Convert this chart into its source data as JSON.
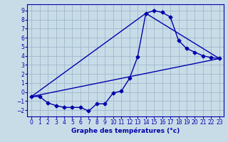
{
  "xlabel": "Graphe des températures (°c)",
  "background_color": "#c8dce8",
  "grid_color": "#a0b8cc",
  "line_color": "#0000aa",
  "xlim": [
    -0.5,
    23.5
  ],
  "ylim": [
    -2.7,
    9.7
  ],
  "xticks": [
    0,
    1,
    2,
    3,
    4,
    5,
    6,
    7,
    8,
    9,
    10,
    11,
    12,
    13,
    14,
    15,
    16,
    17,
    18,
    19,
    20,
    21,
    22,
    23
  ],
  "yticks": [
    -2,
    -1,
    0,
    1,
    2,
    3,
    4,
    5,
    6,
    7,
    8,
    9
  ],
  "series1_x": [
    0,
    1,
    2,
    3,
    4,
    5,
    6,
    7,
    8,
    9,
    10,
    11,
    12,
    13,
    14,
    15,
    16,
    17,
    18,
    19,
    20,
    21,
    22,
    23
  ],
  "series1_y": [
    -0.5,
    -0.5,
    -1.2,
    -1.5,
    -1.7,
    -1.7,
    -1.7,
    -2.1,
    -1.3,
    -1.3,
    -0.1,
    0.1,
    1.5,
    3.9,
    8.7,
    9.0,
    8.8,
    8.3,
    5.7,
    4.8,
    4.4,
    4.0,
    3.8,
    3.7
  ],
  "series2_x": [
    0,
    14,
    23
  ],
  "series2_y": [
    -0.5,
    8.7,
    3.7
  ],
  "series3_x": [
    0,
    23
  ],
  "series3_y": [
    -0.5,
    3.7
  ],
  "marker": "D",
  "markersize": 2.5,
  "linewidth": 1.0,
  "tick_fontsize": 5.5,
  "xlabel_fontsize": 6.5
}
